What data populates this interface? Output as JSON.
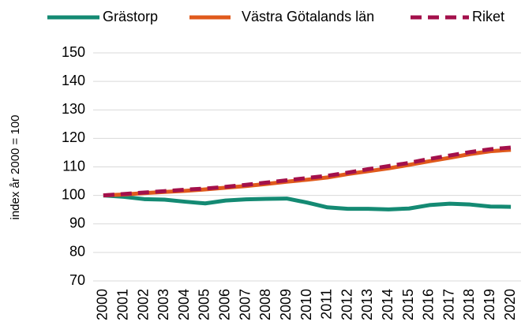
{
  "chart_data": {
    "type": "line",
    "y_label": "index år 2000 = 100",
    "categories": [
      "2000",
      "2001",
      "2002",
      "2003",
      "2004",
      "2005",
      "2006",
      "2007",
      "2008",
      "2009",
      "2010",
      "2011",
      "2012",
      "2013",
      "2014",
      "2015",
      "2016",
      "2017",
      "2018",
      "2019",
      "2020"
    ],
    "series": [
      {
        "name": "Grästorp",
        "color": "#148a73",
        "dashed": false,
        "values": [
          100,
          99.5,
          98.7,
          98.5,
          97.8,
          97.2,
          98.2,
          98.6,
          98.8,
          98.9,
          97.5,
          95.8,
          95.3,
          95.3,
          95.1,
          95.4,
          96.6,
          97.1,
          96.8,
          96.1,
          96.0
        ]
      },
      {
        "name": "Västra Götalands län",
        "color": "#e05a1c",
        "dashed": false,
        "values": [
          100,
          100.3,
          100.8,
          101.2,
          101.6,
          102.1,
          102.7,
          103.3,
          104.0,
          104.8,
          105.5,
          106.3,
          107.5,
          108.5,
          109.5,
          110.7,
          112.0,
          113.2,
          114.5,
          115.5,
          116.0
        ]
      },
      {
        "name": "Riket",
        "color": "#a3104b",
        "dashed": true,
        "values": [
          100,
          100.5,
          101.0,
          101.5,
          102.0,
          102.4,
          103.0,
          103.7,
          104.5,
          105.3,
          106.1,
          106.9,
          108.0,
          109.2,
          110.3,
          111.4,
          112.8,
          114.0,
          115.2,
          116.2,
          116.8
        ]
      }
    ],
    "ylim": [
      70,
      150
    ],
    "yticks": [
      70,
      80,
      90,
      100,
      110,
      120,
      130,
      140,
      150
    ],
    "grid": true,
    "legend": "top"
  }
}
